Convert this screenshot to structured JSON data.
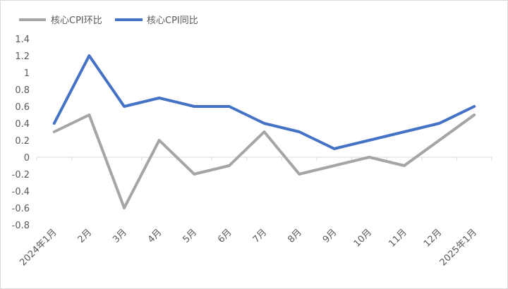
{
  "chart_data": {
    "type": "line",
    "title": "",
    "xlabel": "",
    "ylabel": "",
    "categories": [
      "2024年1月",
      "2月",
      "3月",
      "4月",
      "5月",
      "6月",
      "7月",
      "8月",
      "9月",
      "10月",
      "11月",
      "12月",
      "2025年1月"
    ],
    "ylim": [
      -0.8,
      1.4
    ],
    "yticks": [
      1.4,
      1.2,
      1,
      0.8,
      0.6,
      0.4,
      0.2,
      0,
      -0.2,
      -0.4,
      -0.6,
      -0.8
    ],
    "ytick_labels": [
      "1.4",
      "1.2",
      "1",
      "0.8",
      "0.6",
      "0.4",
      "0.2",
      "0",
      "-0.2",
      "-0.4",
      "-0.6",
      "-0.8"
    ],
    "grid": false,
    "legend_position": "top-left",
    "series": [
      {
        "name": "核心CPI环比",
        "color": "#a5a5a5",
        "values": [
          0.3,
          0.5,
          -0.6,
          0.2,
          -0.2,
          -0.1,
          0.3,
          -0.2,
          -0.1,
          0.0,
          -0.1,
          0.2,
          0.5
        ]
      },
      {
        "name": "核心CPI同比",
        "color": "#4472c4",
        "values": [
          0.4,
          1.2,
          0.6,
          0.7,
          0.6,
          0.6,
          0.4,
          0.3,
          0.1,
          0.2,
          0.3,
          0.4,
          0.6
        ]
      }
    ]
  }
}
